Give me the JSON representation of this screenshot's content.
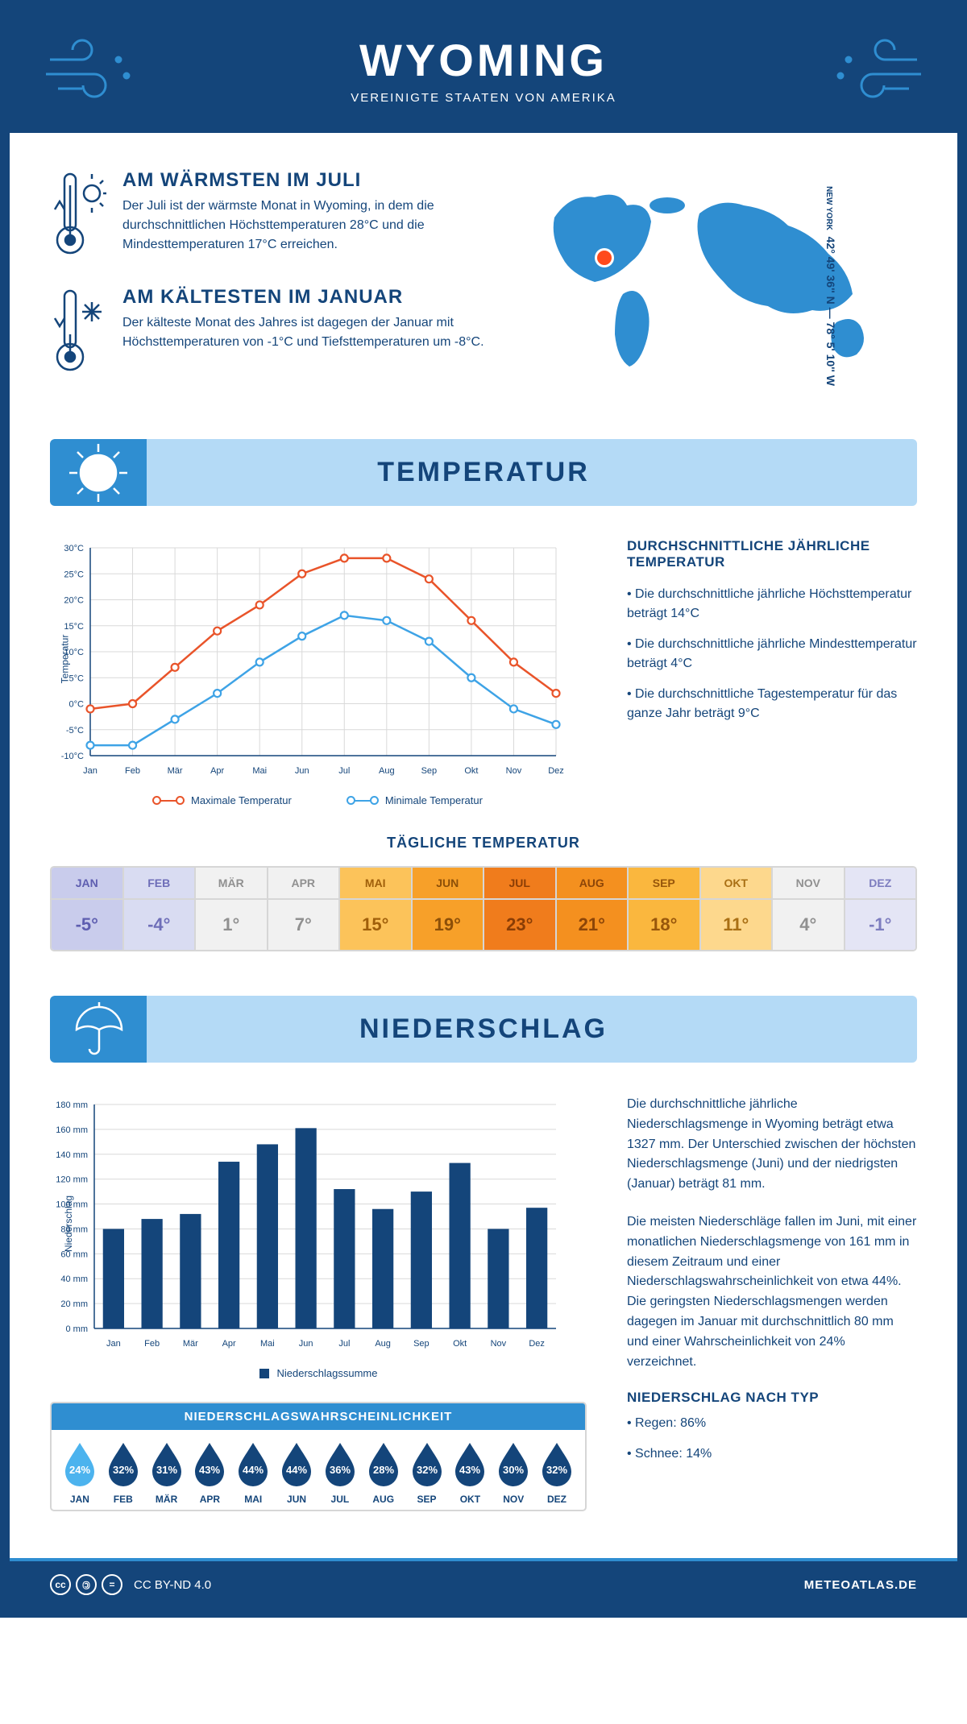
{
  "header": {
    "title": "WYOMING",
    "subtitle": "VEREINIGTE STAATEN VON AMERIKA",
    "colors": {
      "bg": "#14457a",
      "text": "#ffffff",
      "wind": "#2f8ed1"
    }
  },
  "coords": "42° 49' 36'' N — 78° 5' 10'' W",
  "coords_sub": "NEW YORK",
  "warmest": {
    "title": "AM WÄRMSTEN IM JULI",
    "text": "Der Juli ist der wärmste Monat in Wyoming, in dem die durchschnittlichen Höchsttemperaturen 28°C und die Mindesttemperaturen 17°C erreichen."
  },
  "coldest": {
    "title": "AM KÄLTESTEN IM JANUAR",
    "text": "Der kälteste Monat des Jahres ist dagegen der Januar mit Höchsttemperaturen von -1°C und Tiefsttemperaturen um -8°C."
  },
  "temperature": {
    "banner": "TEMPERATUR",
    "chart": {
      "type": "line",
      "months": [
        "Jan",
        "Feb",
        "Mär",
        "Apr",
        "Mai",
        "Jun",
        "Jul",
        "Aug",
        "Sep",
        "Okt",
        "Nov",
        "Dez"
      ],
      "max": {
        "label": "Maximale Temperatur",
        "values": [
          -1,
          0,
          7,
          14,
          19,
          25,
          28,
          28,
          24,
          16,
          8,
          2
        ],
        "color": "#e9542a"
      },
      "min": {
        "label": "Minimale Temperatur",
        "values": [
          -8,
          -8,
          -3,
          2,
          8,
          13,
          17,
          16,
          12,
          5,
          -1,
          -4
        ],
        "color": "#3ea3e6"
      },
      "ylim": [
        -10,
        30
      ],
      "ystep": 5,
      "ylabel": "Temperatur",
      "grid_color": "#d9d9d9",
      "axis_color": "#14457a",
      "tick_fontsize": 11
    },
    "side": {
      "title": "DURCHSCHNITTLICHE JÄHRLICHE TEMPERATUR",
      "bullets": [
        "Die durchschnittliche jährliche Höchsttemperatur beträgt 14°C",
        "Die durchschnittliche jährliche Mindesttemperatur beträgt 4°C",
        "Die durchschnittliche Tagestemperatur für das ganze Jahr beträgt 9°C"
      ]
    },
    "daily": {
      "title": "TÄGLICHE TEMPERATUR",
      "months": [
        "JAN",
        "FEB",
        "MÄR",
        "APR",
        "MAI",
        "JUN",
        "JUL",
        "AUG",
        "SEP",
        "OKT",
        "NOV",
        "DEZ"
      ],
      "values": [
        "-5°",
        "-4°",
        "1°",
        "7°",
        "15°",
        "19°",
        "23°",
        "21°",
        "18°",
        "11°",
        "4°",
        "-1°"
      ],
      "bg_colors": [
        "#c9ccec",
        "#d9dcf2",
        "#f1f1f1",
        "#f1f1f1",
        "#fcc35a",
        "#f7a029",
        "#f07c1c",
        "#f4901f",
        "#fab73e",
        "#fdd88d",
        "#f1f1f1",
        "#e4e5f5"
      ],
      "text_colors": [
        "#5e5eb0",
        "#6e6eb8",
        "#909090",
        "#909090",
        "#a05f0a",
        "#8c4f08",
        "#8a3d05",
        "#8c4508",
        "#97560b",
        "#a96f14",
        "#909090",
        "#7d7dbf"
      ]
    }
  },
  "precipitation": {
    "banner": "NIEDERSCHLAG",
    "chart": {
      "type": "bar",
      "months": [
        "Jan",
        "Feb",
        "Mär",
        "Apr",
        "Mai",
        "Jun",
        "Jul",
        "Aug",
        "Sep",
        "Okt",
        "Nov",
        "Dez"
      ],
      "values": [
        80,
        88,
        92,
        134,
        148,
        161,
        112,
        96,
        110,
        133,
        80,
        97
      ],
      "legend": "Niederschlagssumme",
      "ylabel": "Niederschlag",
      "ylim": [
        0,
        180
      ],
      "ystep": 20,
      "bar_color": "#14457a",
      "grid_color": "#d9d9d9",
      "axis_color": "#14457a",
      "bar_width": 0.55,
      "tick_fontsize": 11
    },
    "text1": "Die durchschnittliche jährliche Niederschlagsmenge in Wyoming beträgt etwa 1327 mm. Der Unterschied zwischen der höchsten Niederschlagsmenge (Juni) und der niedrigsten (Januar) beträgt 81 mm.",
    "text2": "Die meisten Niederschläge fallen im Juni, mit einer monatlichen Niederschlagsmenge von 161 mm in diesem Zeitraum und einer Niederschlagswahrscheinlichkeit von etwa 44%. Die geringsten Niederschlagsmengen werden dagegen im Januar mit durchschnittlich 80 mm und einer Wahrscheinlichkeit von 24% verzeichnet.",
    "by_type": {
      "title": "NIEDERSCHLAG NACH TYP",
      "bullets": [
        "Regen: 86%",
        "Schnee: 14%"
      ]
    },
    "probability": {
      "title": "NIEDERSCHLAGSWAHRSCHEINLICHKEIT",
      "months": [
        "JAN",
        "FEB",
        "MÄR",
        "APR",
        "MAI",
        "JUN",
        "JUL",
        "AUG",
        "SEP",
        "OKT",
        "NOV",
        "DEZ"
      ],
      "values": [
        "24%",
        "32%",
        "31%",
        "43%",
        "44%",
        "44%",
        "36%",
        "28%",
        "32%",
        "43%",
        "30%",
        "32%"
      ],
      "drop_colors": [
        "#4cb3ee",
        "#14457a",
        "#14457a",
        "#14457a",
        "#14457a",
        "#14457a",
        "#14457a",
        "#14457a",
        "#14457a",
        "#14457a",
        "#14457a",
        "#14457a"
      ]
    }
  },
  "footer": {
    "license": "CC BY-ND 4.0",
    "site": "METEOATLAS.DE"
  }
}
